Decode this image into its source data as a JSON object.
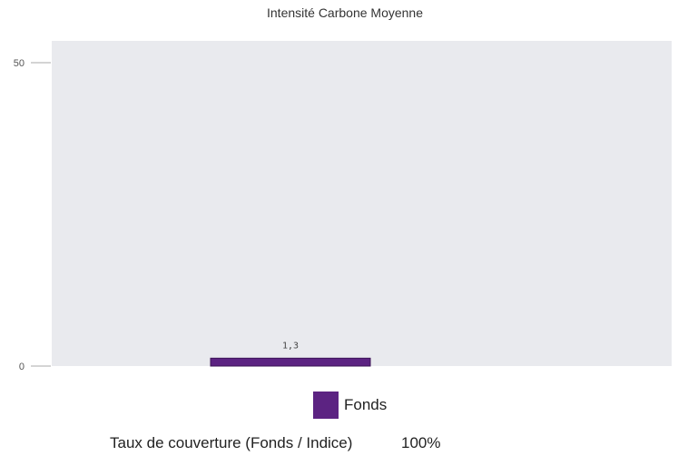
{
  "colors": {
    "fonds": "#5c2382",
    "plot_bg": "#e9eaee",
    "axis_tick": "#aaaaaa"
  },
  "chart_data": {
    "type": "bar",
    "title": "Intensité Carbone Moyenne",
    "categories": [
      ""
    ],
    "series": [
      {
        "name": "Fonds",
        "values": [
          1.3
        ],
        "labels": [
          "1,3"
        ]
      }
    ],
    "yticks": [
      0,
      50
    ],
    "ytick_labels": [
      "0",
      "50"
    ],
    "ylim": [
      0,
      50
    ],
    "grid": false,
    "legend": "bottom-center"
  },
  "footer": {
    "coverage_label": "Taux de couverture (Fonds / Indice)",
    "coverage_value": "100%"
  }
}
